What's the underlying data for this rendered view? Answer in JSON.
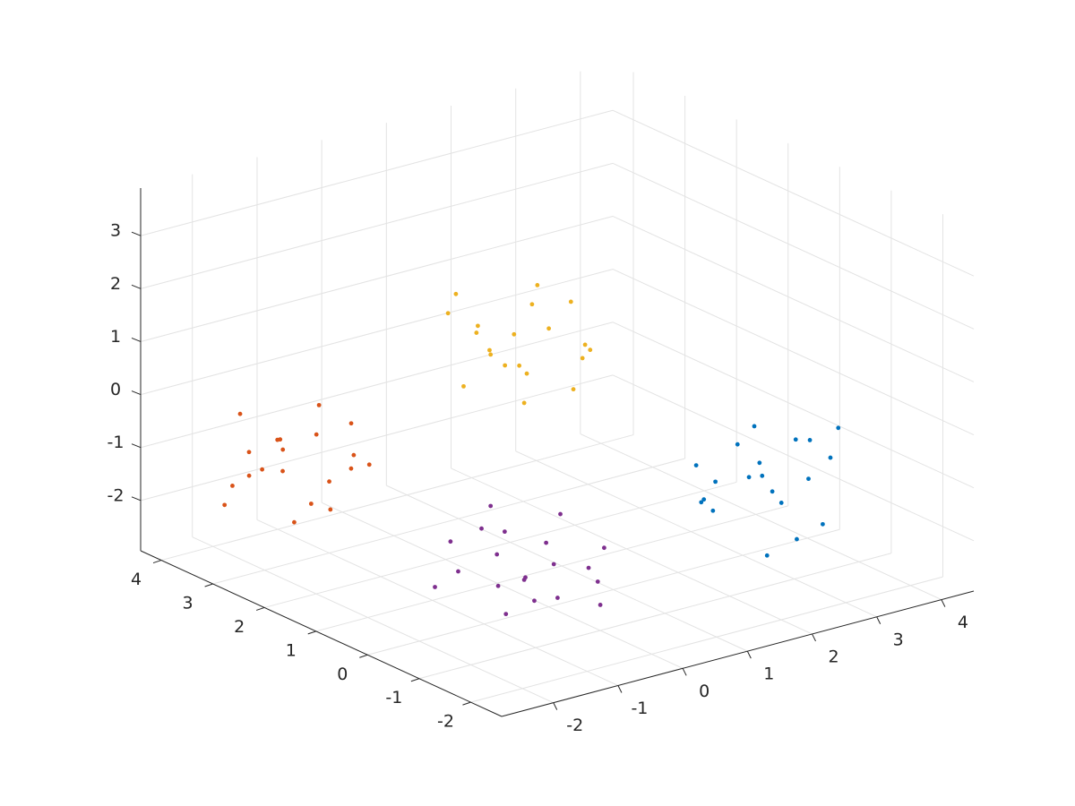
{
  "chart_data": {
    "type": "scatter3d",
    "xlim": [
      -2.8,
      4.5
    ],
    "ylim": [
      -2.6,
      4.4
    ],
    "zlim": [
      -2.95,
      3.9
    ],
    "xticks": [
      -2,
      -1,
      0,
      1,
      2,
      3,
      4
    ],
    "yticks": [
      -2,
      -1,
      0,
      1,
      2,
      3,
      4
    ],
    "zticks": [
      -2,
      -1,
      0,
      1,
      2,
      3
    ],
    "grid": true,
    "series": [
      {
        "color": "#0072bd",
        "x": [
          3.3,
          2.4,
          3.8,
          2.8,
          3.5,
          2.1,
          3.1,
          3.6,
          2.6,
          3.9,
          2.3,
          3.2,
          2.7,
          3.4,
          2.2,
          3.7,
          2.9,
          3.0,
          2.5,
          4.0
        ],
        "y": [
          -0.9,
          0,
          -0.3,
          -1.3,
          0.3,
          -0.6,
          -0.1,
          -0.8,
          0.4,
          0.1,
          -1.0,
          -0.5,
          0.2,
          -1.2,
          -0.2,
          0.5,
          -0.7,
          0.1,
          -1.1,
          -0.6
        ],
        "z": [
          -1.2,
          -1.7,
          -0.9,
          -2.0,
          -1.5,
          -1.0,
          -0.5,
          -2.2,
          -1.3,
          -1.1,
          -0.8,
          -1.8,
          -2.1,
          -0.7,
          -1.6,
          -1.9,
          -1.4,
          -0.9,
          -2.3,
          -0.6
        ]
      },
      {
        "color": "#d95319",
        "x": [
          -2.0,
          -1.1,
          -1.4,
          -2.4,
          -0.8,
          -1.7,
          -1.2,
          -1.9,
          -0.7,
          -1.0,
          -2.1,
          -1.6,
          -0.9,
          -2.3,
          -1.3,
          -0.6,
          -1.8,
          -1.0,
          -2.2,
          -1.7
        ],
        "y": [
          3.3,
          2.4,
          3.8,
          2.8,
          3.5,
          2.1,
          3.1,
          3.6,
          2.6,
          3.9,
          2.3,
          3.2,
          2.7,
          3.4,
          2.2,
          3.7,
          2.9,
          3.0,
          2.5,
          4.0
        ],
        "z": [
          -1.3,
          -0.8,
          -1.6,
          -0.5,
          -1.0,
          -1.5,
          -2.0,
          -0.3,
          -1.2,
          -1.4,
          -1.7,
          -0.7,
          -0.4,
          -1.8,
          -0.9,
          -0.6,
          -1.1,
          -1.6,
          -0.2,
          -1.9
        ]
      },
      {
        "color": "#edb120",
        "x": [
          0.5,
          1.4,
          0.0,
          1.0,
          0.3,
          1.7,
          0.7,
          0.2,
          1.2,
          -0.1,
          1.5,
          0.6,
          1.1,
          0.4,
          1.6,
          0.1,
          0.9,
          0.8,
          1.3,
          -0.2
        ],
        "y": [
          2.0,
          1.1,
          1.4,
          2.4,
          0.8,
          1.7,
          1.2,
          1.9,
          0.7,
          1.0,
          2.1,
          1.6,
          0.9,
          2.3,
          1.3,
          0.6,
          1.8,
          1.0,
          2.2,
          1.7
        ],
        "z": [
          1.3,
          0.8,
          1.6,
          0.5,
          1.0,
          1.5,
          2.0,
          0.3,
          1.2,
          1.4,
          1.7,
          0.7,
          0.4,
          1.8,
          0.9,
          0.6,
          1.1,
          1.6,
          0.2,
          1.9
        ]
      },
      {
        "color": "#7e2f8e",
        "x": [
          0.2,
          -0.7,
          -0.4,
          0.6,
          -1.0,
          -0.1,
          -0.6,
          0.1,
          -1.1,
          -0.8,
          0.3,
          -0.2,
          -0.9,
          0.5,
          -0.5,
          -1.2,
          0.0,
          -0.8,
          0.4,
          -0.1
        ],
        "y": [
          0.3,
          -0.6,
          0.8,
          -0.2,
          0.5,
          -0.9,
          0.1,
          0.6,
          -0.4,
          0.9,
          -0.7,
          0.2,
          -0.3,
          0.4,
          -0.8,
          0.7,
          -0.1,
          0.0,
          -0.5,
          1.0
        ],
        "z": [
          -1.94,
          -2.34,
          -1.7,
          -2.58,
          -2.18,
          -1.78,
          -1.38,
          -2.74,
          -2.02,
          -1.86,
          -1.62,
          -2.42,
          -2.66,
          -1.54,
          -2.26,
          -2.5,
          -2.1,
          -1.7,
          -2.82,
          -1.46
        ]
      }
    ]
  }
}
